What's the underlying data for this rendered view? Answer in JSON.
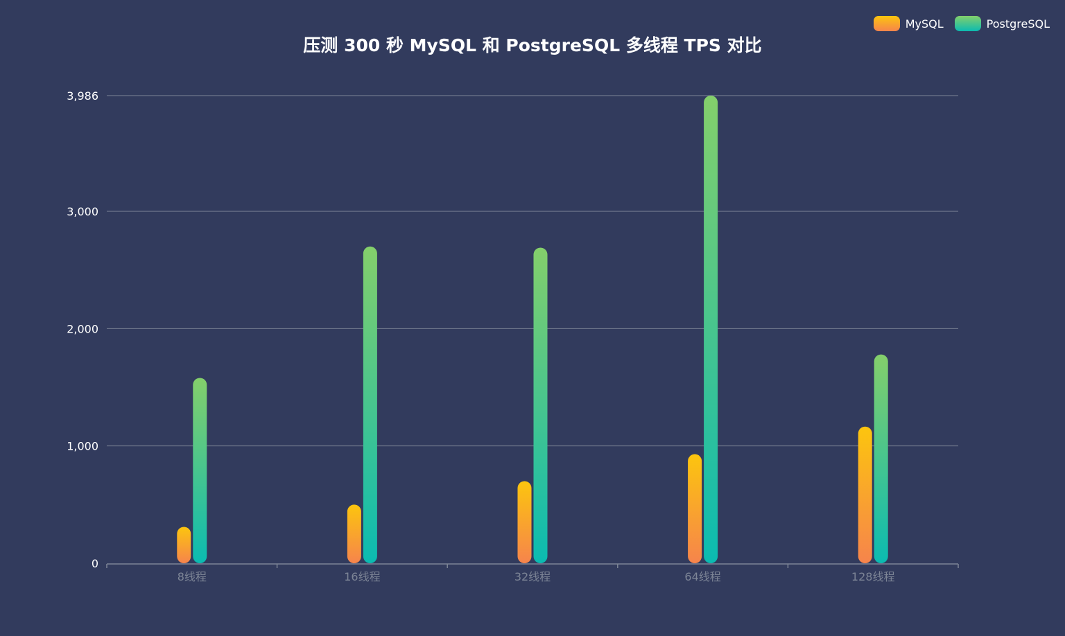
{
  "title": "压测 300 秒 MySQL 和 PostgreSQL 多线程 TPS 对比",
  "legend": [
    {
      "name": "MySQL"
    },
    {
      "name": "PostgreSQL"
    }
  ],
  "colors": {
    "background": "#323b5d",
    "grid": "#7d8596",
    "axis_label": "#ffffff",
    "category_label": "#7d8596",
    "mysql_top": "#fcc50e",
    "mysql_bottom": "#f6844c",
    "pg_top": "#84cf6b",
    "pg_bottom": "#0bbbb1"
  },
  "chart_data": {
    "type": "bar",
    "title": "压测 300 秒 MySQL 和 PostgreSQL 多线程 TPS 对比",
    "categories": [
      "8线程",
      "16线程",
      "32线程",
      "64线程",
      "128线程"
    ],
    "series": [
      {
        "name": "MySQL",
        "values": [
          310,
          500,
          700,
          930,
          1165
        ]
      },
      {
        "name": "PostgreSQL",
        "values": [
          1580,
          2700,
          2690,
          3986,
          1780
        ]
      }
    ],
    "yticks": [
      "0",
      "1,000",
      "2,000",
      "3,000",
      "3,986"
    ],
    "ytick_values": [
      0,
      1000,
      2000,
      3000,
      3986
    ],
    "ylim": [
      0,
      3986
    ],
    "grid": true,
    "legend_position": "top-right"
  }
}
